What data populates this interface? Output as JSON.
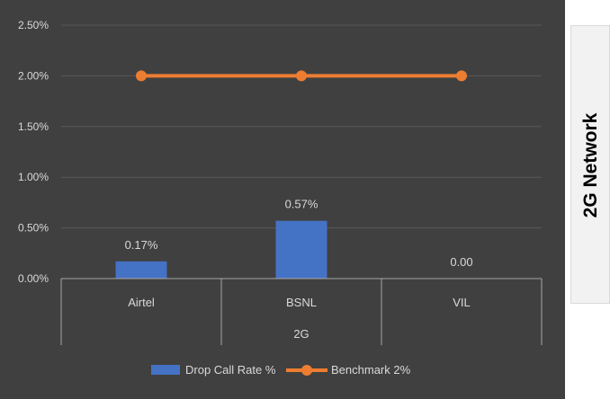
{
  "side_label": "2G Network",
  "chart_data": {
    "type": "bar",
    "categories": [
      "Airtel",
      "BSNL",
      "VIL"
    ],
    "group_label": "2G",
    "series": [
      {
        "name": "Drop Call Rate %",
        "type": "bar",
        "values": [
          0.17,
          0.57,
          0.0
        ],
        "color": "#4472c4",
        "labels": [
          "0.17%",
          "0.57%",
          "0.00"
        ]
      },
      {
        "name": "Benchmark 2%",
        "type": "line",
        "values": [
          2.0,
          2.0,
          2.0
        ],
        "color": "#ed7d31"
      }
    ],
    "y_ticks": [
      "0.00%",
      "0.50%",
      "1.00%",
      "1.50%",
      "2.00%",
      "2.50%"
    ],
    "ylim": [
      0,
      2.5
    ],
    "grid": true,
    "legend_position": "bottom",
    "colors": {
      "background": "#404040",
      "gridline": "#595959",
      "text": "#d9d9d9"
    }
  }
}
